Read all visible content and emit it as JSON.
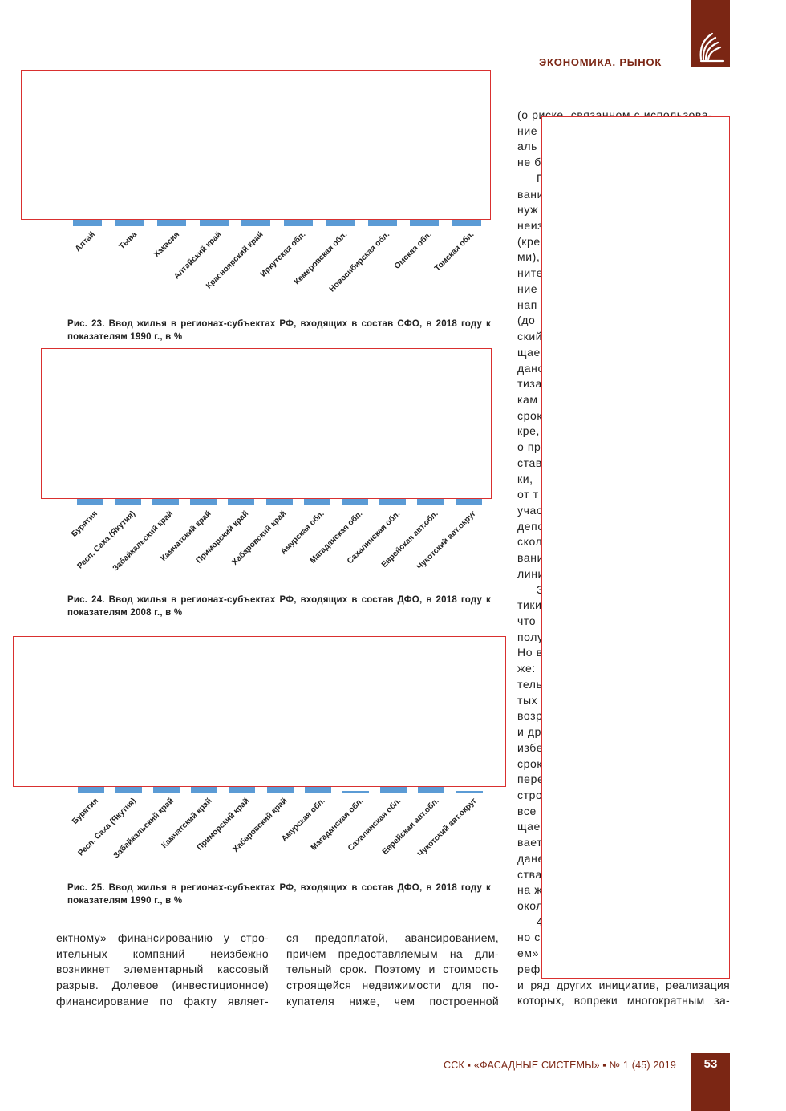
{
  "header": {
    "section_title": "ЭКОНОМИКА. РЫНОК",
    "logo_icon": "journal-logo-icon",
    "accent_color": "#7b2614"
  },
  "figures": [
    {
      "caption": "Рис. 23. Ввод жилья в регионах-субъектах РФ, входящих в состав СФО, в 2018 году к показателям 1990 г., в %"
    },
    {
      "caption": "Рис. 24. Ввод жилья в регионах-субъектах РФ, входящих в состав ДФО, в 2018 году к показателям 2008 г., в %"
    },
    {
      "caption": "Рис. 25. Ввод жилья в регионах-субъектах РФ, входящих в состав ДФО, в 2018 году к показателям 1990 г., в %"
    }
  ],
  "chart_data": [
    {
      "type": "bar",
      "categories": [
        "Алтай",
        "Тыва",
        "Хакасия",
        "Алтайский край",
        "Красноярский край",
        "Иркутская обл.",
        "Кемеровская обл.",
        "Новосибирская обл.",
        "Омская обл.",
        "Томская обл."
      ],
      "values": null,
      "bar_color": "#5b9bd5"
    },
    {
      "type": "bar",
      "categories": [
        "Бурятия",
        "Респ. Саха (Якутия)",
        "Забайкальский край",
        "Камчатский край",
        "Приморский край",
        "Хабаровский край",
        "Амурская обл.",
        "Магаданская обл.",
        "Сахалинская обл.",
        "Еврейская авт.обл.",
        "Чукотский авт.округ"
      ],
      "values": null,
      "bar_color": "#5b9bd5"
    },
    {
      "type": "bar",
      "categories": [
        "Бурятия",
        "Респ. Саха (Якутия)",
        "Забайкальский край",
        "Камчатский край",
        "Приморский край",
        "Хабаровский край",
        "Амурская обл.",
        "Магаданская обл.",
        "Сахалинская обл.",
        "Еврейская авт.обл.",
        "Чукотский авт.округ"
      ],
      "values": null,
      "bar_color": "#5b9bd5"
    }
  ],
  "right_column_lines": [
    "(о риске, связанном с использова-",
    "ние",
    "аль",
    "не б",
    "П",
    "вани",
    "нуж",
    "неиз",
    "(кре",
    "ми),",
    "ните",
    "ние",
    "нап",
    "(до",
    "ский",
    "щае",
    "дано",
    "тиза",
    "кам",
    "срок",
    "кре,",
    "о пр",
    "став",
    "ки,",
    "от т",
    "учас",
    "депо",
    "скол",
    "вани",
    "лини",
    "З",
    "тики",
    "что",
    "полу",
    "Но в",
    "же:",
    "тель",
    "тых",
    "возр",
    "и др",
    "избе",
    "срок",
    "пере",
    "стро",
    "все",
    "щае",
    "вает",
    "дане",
    "ства",
    "на ж",
    "окол",
    "4",
    "но с",
    "ем»",
    "реф",
    "и ряд других инициатив, реализация",
    "которых, вопреки многократным за-"
  ],
  "bottom_col1_lines": [
    "ектному» финансированию у стро-",
    "ительных компаний неизбежно",
    "возникнет элементарный кассовый",
    "разрыв. Долевое (инвестиционное)",
    "финансирование по факту являет-"
  ],
  "bottom_col2_lines": [
    "ся предоплатой, авансированием,",
    "причем предоставляемым на дли-",
    "тельный срок. Поэтому и стоимость",
    "строящейся недвижимости для по-",
    "купателя ниже, чем построенной"
  ],
  "footer": {
    "journal": "ССК ▪ «ФАСАДНЫЕ СИСТЕМЫ» ▪ № 1 (45) 2019",
    "page_number": "53"
  }
}
